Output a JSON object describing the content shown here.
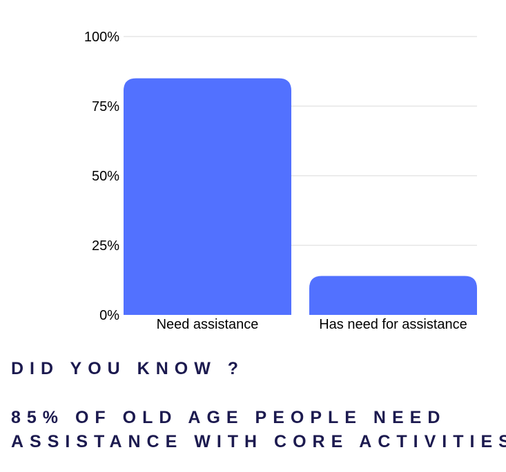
{
  "chart_data": {
    "type": "bar",
    "categories": [
      "Need assistance",
      "Has need for assistance"
    ],
    "values": [
      85,
      14
    ],
    "ylim": [
      0,
      100
    ],
    "yticks": [
      0,
      25,
      50,
      75,
      100
    ],
    "ytick_labels": [
      "0%",
      "25%",
      "50%",
      "75%",
      "100%"
    ],
    "grid": true,
    "bar_color": "#5271ff",
    "grid_color": "#d9d9d9"
  },
  "caption": {
    "heading": "DID YOU KNOW ?",
    "line1": "85% OF OLD AGE PEOPLE NEED",
    "line2": "ASSISTANCE WITH CORE ACTIVITIES",
    "color": "#1c1a4f"
  }
}
